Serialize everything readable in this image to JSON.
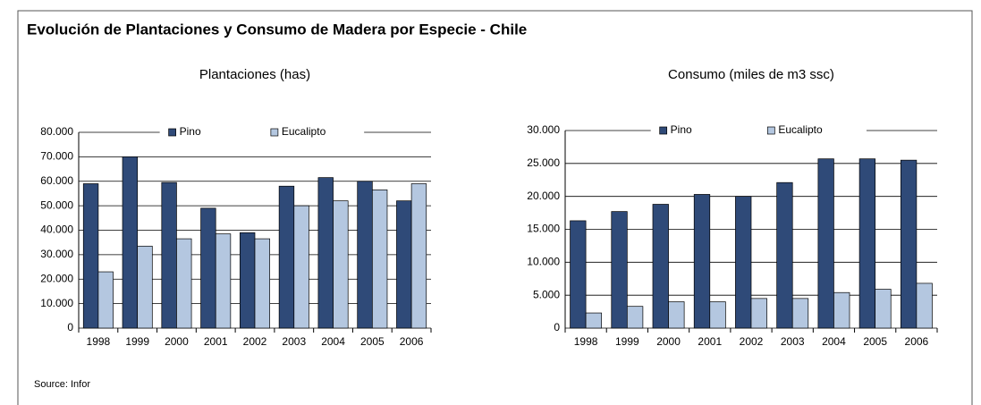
{
  "header": {
    "title": "Evolución de Plantaciones y Consumo de Madera por Especie - Chile"
  },
  "source": "Source: Infor",
  "chart_data": [
    {
      "type": "bar",
      "title": "Plantaciones (has)",
      "categories": [
        "1998",
        "1999",
        "2000",
        "2001",
        "2002",
        "2003",
        "2004",
        "2005",
        "2006"
      ],
      "series": [
        {
          "name": "Pino",
          "color": "#2f4a78",
          "values": [
            59000,
            70000,
            59500,
            49000,
            39000,
            58000,
            61500,
            60000,
            52000
          ]
        },
        {
          "name": "Eucalipto",
          "color": "#b4c7e0",
          "values": [
            23000,
            33500,
            36500,
            38500,
            36500,
            50000,
            52000,
            56500,
            59000
          ]
        }
      ],
      "ylim": [
        0,
        80000
      ],
      "yticks": [
        0,
        {
          "value": 10000,
          "label": "10.000"
        },
        {
          "value": 20000,
          "label": "20.000"
        },
        {
          "value": 30000,
          "label": "30.000"
        },
        {
          "value": 40000,
          "label": "40.000"
        },
        {
          "value": 50000,
          "label": "50.000"
        },
        {
          "value": 60000,
          "label": "60.000"
        },
        {
          "value": 70000,
          "label": "70.000"
        },
        {
          "value": 80000,
          "label": "80.000"
        }
      ],
      "grid": true,
      "legend": "top"
    },
    {
      "type": "bar",
      "title": "Consumo (miles de m3 ssc)",
      "categories": [
        "1998",
        "1999",
        "2000",
        "2001",
        "2002",
        "2003",
        "2004",
        "2005",
        "2006"
      ],
      "series": [
        {
          "name": "Pino",
          "color": "#2f4a78",
          "values": [
            16300,
            17700,
            18800,
            20300,
            20000,
            22100,
            25700,
            25700,
            25500
          ]
        },
        {
          "name": "Eucalipto",
          "color": "#b4c7e0",
          "values": [
            2300,
            3300,
            4000,
            4000,
            4500,
            4500,
            5400,
            5900,
            6800
          ]
        }
      ],
      "ylim": [
        0,
        30000
      ],
      "yticks": [
        0,
        {
          "value": 5000,
          "label": "5.000"
        },
        {
          "value": 10000,
          "label": "10.000"
        },
        {
          "value": 15000,
          "label": "15.000"
        },
        {
          "value": 20000,
          "label": "20.000"
        },
        {
          "value": 25000,
          "label": "25.000"
        },
        {
          "value": 30000,
          "label": "30.000"
        }
      ],
      "grid": true,
      "legend": "top"
    }
  ]
}
